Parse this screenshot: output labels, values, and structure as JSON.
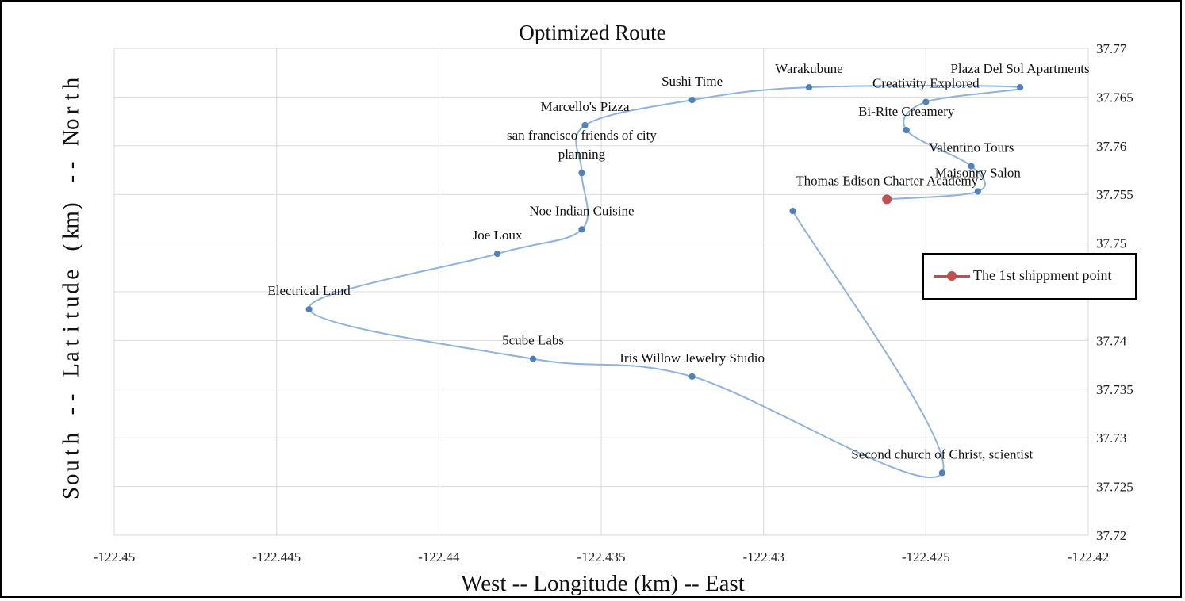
{
  "chart_data": {
    "type": "scatter",
    "title": "Optimized Route",
    "xlabel": "West -- Longitude (km) -- East",
    "ylabel": "South -- Latitude (km) -- North",
    "xlim": [
      -122.45,
      -122.42
    ],
    "ylim": [
      37.72,
      37.77
    ],
    "xticks": [
      "-122.45",
      "-122.445",
      "-122.44",
      "-122.435",
      "-122.43",
      "-122.425",
      "-122.42"
    ],
    "yticks": [
      "37.72",
      "37.725",
      "37.73",
      "37.735",
      "37.74",
      "37.745",
      "37.75",
      "37.755",
      "37.76",
      "37.765",
      "37.77"
    ],
    "grid": true,
    "legend_position": "right",
    "series": [
      {
        "name": "",
        "color": "#4f81bd",
        "line": "smooth",
        "points": [
          {
            "label": "Thomas Edison Charter Academy",
            "x": -122.4262,
            "y": 37.7545
          },
          {
            "label": "Maisonry Salon",
            "x": -122.4234,
            "y": 37.7553
          },
          {
            "label": "Valentino Tours",
            "x": -122.4236,
            "y": 37.7579
          },
          {
            "label": "Bi-Rite Creamery",
            "x": -122.4256,
            "y": 37.7616
          },
          {
            "label": "Creativity Explored",
            "x": -122.425,
            "y": 37.7645
          },
          {
            "label": "Plaza Del Sol Apartments",
            "x": -122.4221,
            "y": 37.766
          },
          {
            "label": "Warakubune",
            "x": -122.4286,
            "y": 37.766
          },
          {
            "label": "Sushi Time",
            "x": -122.4322,
            "y": 37.7647
          },
          {
            "label": "Marcello's Pizza",
            "x": -122.4355,
            "y": 37.7621
          },
          {
            "label": "san francisco friends of city planning",
            "x": -122.4356,
            "y": 37.7572
          },
          {
            "label": "Noe Indian Cuisine",
            "x": -122.4356,
            "y": 37.7514
          },
          {
            "label": "Joe Loux",
            "x": -122.4382,
            "y": 37.7489
          },
          {
            "label": "Electrical Land",
            "x": -122.444,
            "y": 37.7432
          },
          {
            "label": "5cube Labs",
            "x": -122.4371,
            "y": 37.7381
          },
          {
            "label": "Iris Willow Jewelry Studio",
            "x": -122.4322,
            "y": 37.7363
          },
          {
            "label": "Second church of Christ, scientist",
            "x": -122.4245,
            "y": 37.7264
          },
          {
            "label": "",
            "x": -122.4291,
            "y": 37.7533
          }
        ]
      },
      {
        "name": "The 1st shippment point",
        "color": "#c0504d",
        "points": [
          {
            "x": -122.4262,
            "y": 37.7545
          }
        ]
      }
    ]
  }
}
